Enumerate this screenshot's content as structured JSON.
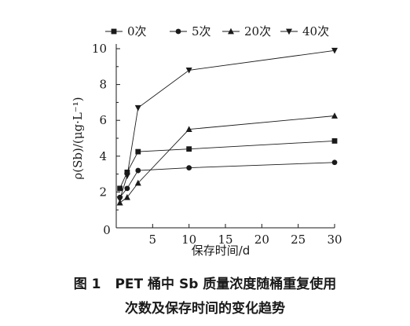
{
  "chart_data": {
    "type": "line",
    "x": [
      0.5,
      1.5,
      3,
      10,
      30
    ],
    "series": [
      {
        "name": "0次",
        "marker": "square",
        "values": [
          2.2,
          3.1,
          4.25,
          4.4,
          4.85
        ]
      },
      {
        "name": "5次",
        "marker": "circle",
        "values": [
          1.7,
          2.2,
          3.2,
          3.35,
          3.65
        ]
      },
      {
        "name": "20次",
        "marker": "triangle-up",
        "values": [
          1.4,
          1.7,
          2.5,
          5.5,
          6.25
        ]
      },
      {
        "name": "40次",
        "marker": "triangle-down",
        "values": [
          1.6,
          2.9,
          6.7,
          8.8,
          9.9
        ]
      }
    ],
    "xlabel": "保存时间/d",
    "ylabel": "ρ(Sb)/(μg·L⁻¹)",
    "xlim": [
      0,
      30
    ],
    "ylim": [
      0,
      10
    ],
    "x_ticks": [
      "0",
      "5",
      "10",
      "15",
      "20",
      "25",
      "30"
    ],
    "y_ticks": [
      "2",
      "4",
      "6",
      "8",
      "10"
    ],
    "y_origin_label": "0",
    "grid": false,
    "legend_position": "top",
    "colors": {
      "line": "#1a1a1a",
      "marker": "#1a1a1a"
    }
  },
  "caption": {
    "figure_number": "图 1",
    "line1": "PET 桶中 Sb 质量浓度随桶重复使用",
    "line2": "次数及保存时间的变化趋势"
  }
}
